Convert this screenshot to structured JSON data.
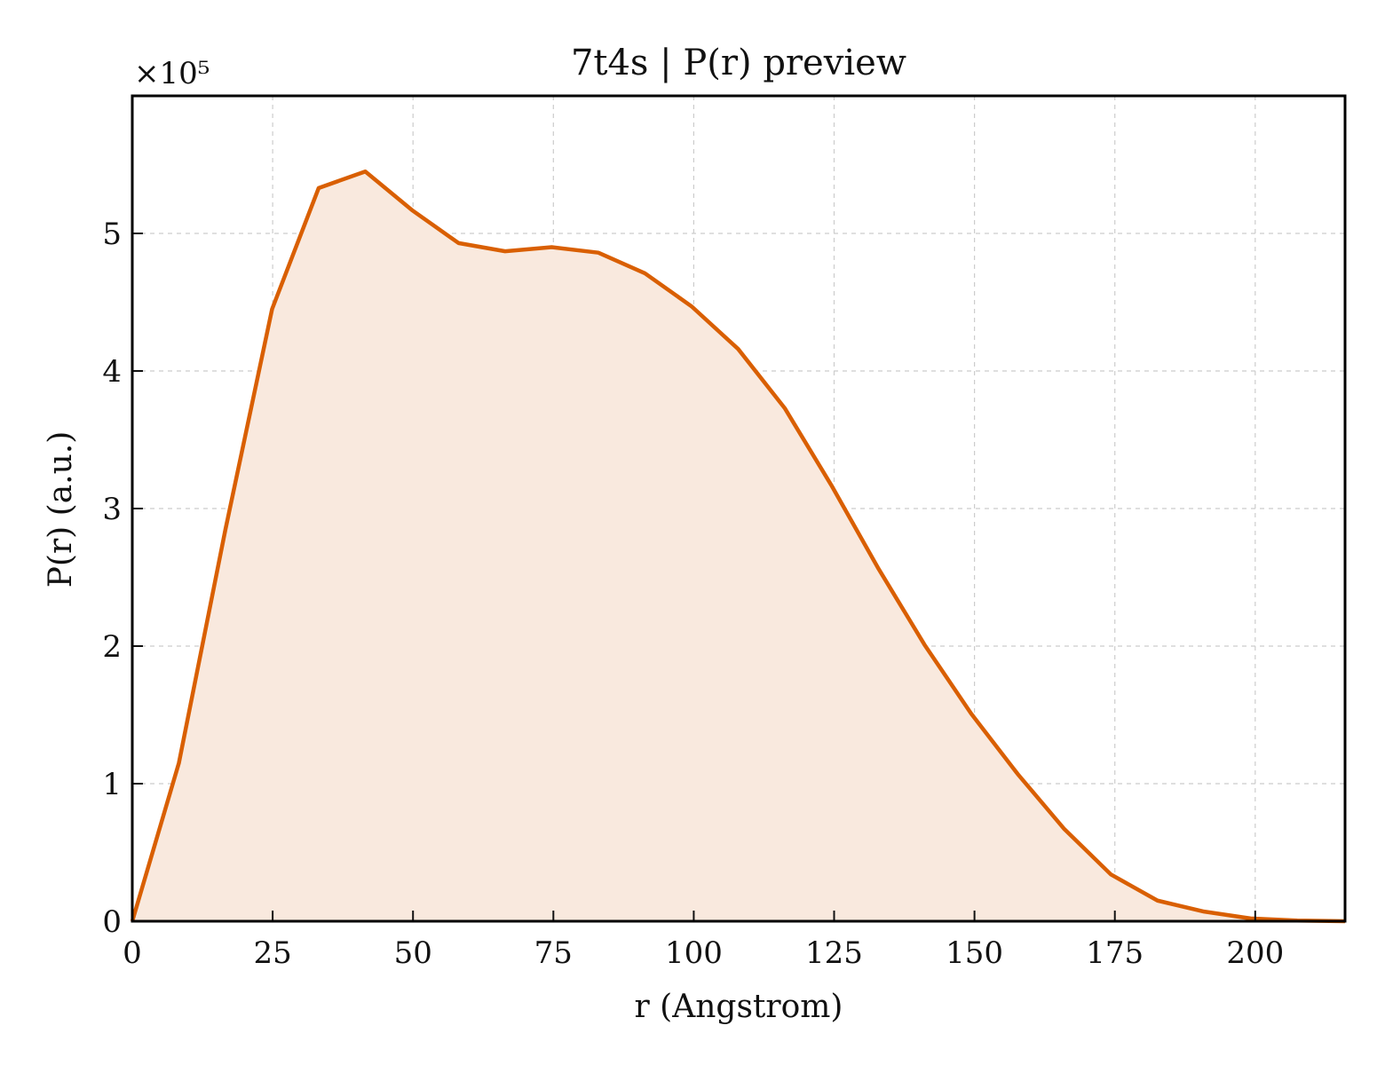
{
  "chart_data": {
    "type": "area",
    "title": "7t4s | P(r) preview",
    "xlabel": "r (Angstrom)",
    "ylabel": "P(r) (a.u.)",
    "y_offset_text": "×10⁵",
    "xlim": [
      0,
      216
    ],
    "ylim": [
      0,
      6.0
    ],
    "y_scale_factor": 100000,
    "x_ticks": [
      0,
      25,
      50,
      75,
      100,
      125,
      150,
      175,
      200
    ],
    "y_ticks": [
      0,
      1,
      2,
      3,
      4,
      5
    ],
    "grid": true,
    "line_color": "#d95f02",
    "fill_color": "#f9e9de",
    "series": [
      {
        "x": [
          0,
          8.3,
          16.6,
          24.9,
          33.2,
          41.5,
          49.8,
          58.1,
          66.4,
          74.7,
          83.0,
          91.3,
          99.6,
          107.9,
          116.2,
          124.5,
          132.8,
          141.1,
          149.4,
          157.7,
          166.0,
          174.3,
          182.6,
          190.9,
          199.2,
          207.5,
          216.0
        ],
        "values": [
          0,
          1.15,
          2.85,
          4.45,
          5.33,
          5.45,
          5.17,
          4.93,
          4.87,
          4.9,
          4.86,
          4.71,
          4.47,
          4.16,
          3.73,
          3.17,
          2.57,
          2.01,
          1.51,
          1.07,
          0.67,
          0.34,
          0.15,
          0.07,
          0.02,
          0.005,
          0
        ]
      }
    ]
  }
}
